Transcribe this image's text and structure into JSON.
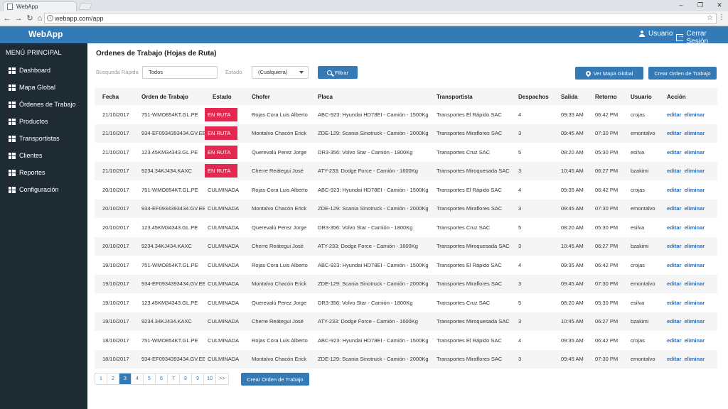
{
  "browser": {
    "tab_title": "WebApp",
    "url": "webapp.com/app"
  },
  "header": {
    "brand": "WebApp",
    "user_label": "Usuario",
    "logout_label": "Cerrar Sesión"
  },
  "sidebar": {
    "title": "MENÚ PRINCIPAL",
    "items": [
      {
        "label": "Dashboard"
      },
      {
        "label": "Mapa Global"
      },
      {
        "label": "Órdenes de Trabajo"
      },
      {
        "label": "Productos"
      },
      {
        "label": "Transportistas"
      },
      {
        "label": "Clientes"
      },
      {
        "label": "Reportes"
      },
      {
        "label": "Configuración"
      }
    ]
  },
  "main": {
    "title": "Ordenes de Trabajo (Hojas de Ruta)",
    "search_label": "Búsqueda Rápida",
    "search_value": "Todos",
    "estado_label": "Estado",
    "estado_value": "(Cualquiera)",
    "filter_button": "Filtrar",
    "map_button": "Ver Mapa Global",
    "create_button": "Crear Orden de Trabajo",
    "create_button_bottom": "Crear Orden de Trabajo"
  },
  "table": {
    "columns": [
      "Fecha",
      "Orden de Trabajo",
      "Estado",
      "Chofer",
      "Placa",
      "Transportista",
      "Despachos",
      "Salida",
      "Retorno",
      "Usuario",
      "Acción"
    ],
    "action_edit": "editar",
    "action_delete": "eliminar",
    "rows": [
      {
        "fecha": "21/10/2017",
        "orden": "751-WMO854KT.GL.PE",
        "estado": "EN RUTA",
        "chofer": "Rojas Cora Luis Alberto",
        "placa": "ABC-923: Hyundai HD78EI - Camión - 1500Kg",
        "transportista": "Transportes El Rápido SAC",
        "despachos": "4",
        "salida": "09:35 AM",
        "retorno": "06:42 PM",
        "usuario": "crojas"
      },
      {
        "fecha": "21/10/2017",
        "orden": "934-EF0934393434.GV.EE",
        "estado": "EN RUTA",
        "chofer": "Montalvo Chacón Erick",
        "placa": "ZDE-129: Scania Sinotruck - Camión - 2000Kg",
        "transportista": "Transportes Miraflores SAC",
        "despachos": "3",
        "salida": "09:45 AM",
        "retorno": "07:30 PM",
        "usuario": "emontalvo"
      },
      {
        "fecha": "21/10/2017",
        "orden": "123.45KM34343.GL.PE",
        "estado": "EN RUTA",
        "chofer": "Querevalú Perez Jorge",
        "placa": "DR3-356: Volvo Star - Camión - 1800Kg",
        "transportista": "Transportes Cruz SAC",
        "despachos": "5",
        "salida": "08:20 AM",
        "retorno": "05:30 PM",
        "usuario": "esilva"
      },
      {
        "fecha": "21/10/2017",
        "orden": "9234.34KJ434.KAXC",
        "estado": "EN RUTA",
        "chofer": "Cherre Reátegui José",
        "placa": "ATY-233: Dodge Force - Camión - 1600Kg",
        "transportista": "Transportes Miroquesada SAC",
        "despachos": "3",
        "salida": "10:45 AM",
        "retorno": "06:27 PM",
        "usuario": "bzakimi"
      },
      {
        "fecha": "20/10/2017",
        "orden": "751-WMO854KT.GL.PE",
        "estado": "CULMINADA",
        "chofer": "Rojas Cora Luis Alberto",
        "placa": "ABC-923: Hyundai HD78EI - Camión - 1500Kg",
        "transportista": "Transportes El Rápido SAC",
        "despachos": "4",
        "salida": "09:35 AM",
        "retorno": "06:42 PM",
        "usuario": "crojas"
      },
      {
        "fecha": "20/10/2017",
        "orden": "934-EF0934393434.GV.EE",
        "estado": "CULMINADA",
        "chofer": "Montalvo Chacón Erick",
        "placa": "ZDE-129: Scania Sinotruck - Camión - 2000Kg",
        "transportista": "Transportes Miraflores SAC",
        "despachos": "3",
        "salida": "09:45 AM",
        "retorno": "07:30 PM",
        "usuario": "emontalvo"
      },
      {
        "fecha": "20/10/2017",
        "orden": "123.45KM34343.GL.PE",
        "estado": "CULMINADA",
        "chofer": "Querevalú Perez Jorge",
        "placa": "DR3-356: Volvo Star - Camión - 1800Kg",
        "transportista": "Transportes Cruz SAC",
        "despachos": "5",
        "salida": "08:20 AM",
        "retorno": "05:30 PM",
        "usuario": "esilva"
      },
      {
        "fecha": "20/10/2017",
        "orden": "9234.34KJ434.KAXC",
        "estado": "CULMINADA",
        "chofer": "Cherre Reátegui José",
        "placa": "ATY-233: Dodge Force - Camión - 1600Kg",
        "transportista": "Transportes Miroquesada SAC",
        "despachos": "3",
        "salida": "10:45 AM",
        "retorno": "06:27 PM",
        "usuario": "bzakimi"
      },
      {
        "fecha": "19/10/2017",
        "orden": "751-WMO854KT.GL.PE",
        "estado": "CULMINADA",
        "chofer": "Rojas Cora Luis Alberto",
        "placa": "ABC-923: Hyundai HD78EI - Camión - 1500Kg",
        "transportista": "Transportes El Rápido SAC",
        "despachos": "4",
        "salida": "09:35 AM",
        "retorno": "06:42 PM",
        "usuario": "crojas"
      },
      {
        "fecha": "19/10/2017",
        "orden": "934-EF0934393434.GV.EE",
        "estado": "CULMINADA",
        "chofer": "Montalvo Chacón Erick",
        "placa": "ZDE-129: Scania Sinotruck - Camión - 2000Kg",
        "transportista": "Transportes Miraflores SAC",
        "despachos": "3",
        "salida": "09:45 AM",
        "retorno": "07:30 PM",
        "usuario": "emontalvo"
      },
      {
        "fecha": "19/10/2017",
        "orden": "123.45KM34343.GL.PE",
        "estado": "CULMINADA",
        "chofer": "Querevalú Perez Jorge",
        "placa": "DR3-356: Volvo Star - Camión - 1800Kg",
        "transportista": "Transportes Cruz SAC",
        "despachos": "5",
        "salida": "08:20 AM",
        "retorno": "05:30 PM",
        "usuario": "esilva"
      },
      {
        "fecha": "19/10/2017",
        "orden": "9234.34KJ434.KAXC",
        "estado": "CULMINADA",
        "chofer": "Cherre Reátegui José",
        "placa": "ATY-233: Dodge Force - Camión - 1600Kg",
        "transportista": "Transportes Miroquesada SAC",
        "despachos": "3",
        "salida": "10:45 AM",
        "retorno": "06:27 PM",
        "usuario": "bzakimi"
      },
      {
        "fecha": "18/10/2017",
        "orden": "751-WMO854KT.GL.PE",
        "estado": "CULMINADA",
        "chofer": "Rojas Cora Luis Alberto",
        "placa": "ABC-923: Hyundai HD78EI - Camión - 1500Kg",
        "transportista": "Transportes El Rápido SAC",
        "despachos": "4",
        "salida": "09:35 AM",
        "retorno": "06:42 PM",
        "usuario": "crojas"
      },
      {
        "fecha": "18/10/2017",
        "orden": "934-EF0934393434.GV.EE",
        "estado": "CULMINADA",
        "chofer": "Montalvo Chacón Erick",
        "placa": "ZDE-129: Scania Sinotruck - Camión - 2000Kg",
        "transportista": "Transportes Miraflores SAC",
        "despachos": "3",
        "salida": "09:45 AM",
        "retorno": "07:30 PM",
        "usuario": "emontalvo"
      }
    ]
  },
  "pagination": {
    "pages": [
      "1",
      "2",
      "3",
      "4",
      "5",
      "6",
      "7",
      "8",
      "9",
      "10",
      ">>"
    ],
    "active": "3"
  },
  "colors": {
    "primary": "#337ab7",
    "sidebar_bg": "#1f2b33",
    "badge_en_ruta": "#e32950"
  }
}
